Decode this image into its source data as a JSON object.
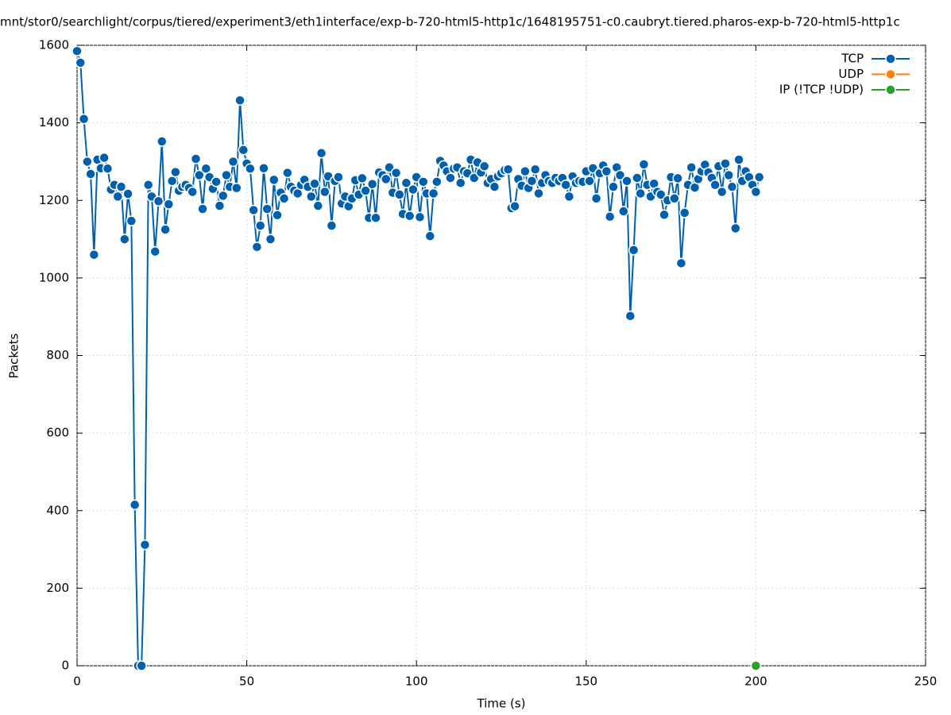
{
  "chart_data": {
    "type": "line",
    "title": "mnt/stor0/searchlight/corpus/tiered/experiment3/eth1interface/exp-b-720-html5-http1c/1648195751-c0.caubryt.tiered.pharos-exp-b-720-html5-http1c",
    "xlabel": "Time (s)",
    "ylabel": "Packets",
    "xlim": [
      0,
      250
    ],
    "xticks": [
      0,
      50,
      100,
      150,
      200,
      250
    ],
    "ylim": [
      0,
      1600
    ],
    "yticks": [
      0,
      200,
      400,
      600,
      800,
      1000,
      1200,
      1400,
      1600
    ],
    "grid": true,
    "legend": "top-right",
    "series": [
      {
        "name": "TCP",
        "color": "#0060ad",
        "x": [
          0,
          1,
          2,
          3,
          4,
          5,
          6,
          7,
          8,
          9,
          10,
          11,
          12,
          13,
          14,
          15,
          16,
          17,
          18,
          19,
          20,
          21,
          22,
          23,
          24,
          25,
          26,
          27,
          28,
          29,
          30,
          31,
          32,
          33,
          34,
          35,
          36,
          37,
          38,
          39,
          40,
          41,
          42,
          43,
          44,
          45,
          46,
          47,
          48,
          49,
          50,
          51,
          52,
          53,
          54,
          55,
          56,
          57,
          58,
          59,
          60,
          61,
          62,
          63,
          64,
          65,
          66,
          67,
          68,
          69,
          70,
          71,
          72,
          73,
          74,
          75,
          76,
          77,
          78,
          79,
          80,
          81,
          82,
          83,
          84,
          85,
          86,
          87,
          88,
          89,
          90,
          91,
          92,
          93,
          94,
          95,
          96,
          97,
          98,
          99,
          100,
          101,
          102,
          103,
          104,
          105,
          106,
          107,
          108,
          109,
          110,
          111,
          112,
          113,
          114,
          115,
          116,
          117,
          118,
          119,
          120,
          121,
          122,
          123,
          124,
          125,
          126,
          127,
          128,
          129,
          130,
          131,
          132,
          133,
          134,
          135,
          136,
          137,
          138,
          139,
          140,
          141,
          142,
          143,
          144,
          145,
          146,
          147,
          148,
          149,
          150,
          151,
          152,
          153,
          154,
          155,
          156,
          157,
          158,
          159,
          160,
          161,
          162,
          163,
          164,
          165,
          166,
          167,
          168,
          169,
          170,
          171,
          172,
          173,
          174,
          175,
          176,
          177,
          178,
          179,
          180,
          181,
          182,
          183,
          184,
          185,
          186,
          187,
          188,
          189,
          190,
          191,
          192,
          193,
          194,
          195,
          196,
          197,
          198,
          199,
          200,
          201
        ],
        "values": [
          1585,
          1555,
          1410,
          1300,
          1268,
          1060,
          1305,
          1283,
          1310,
          1282,
          1228,
          1240,
          1210,
          1235,
          1100,
          1217,
          1147,
          415,
          0,
          0,
          312,
          1240,
          1210,
          1068,
          1198,
          1352,
          1125,
          1190,
          1250,
          1273,
          1225,
          1235,
          1240,
          1232,
          1222,
          1307,
          1265,
          1178,
          1282,
          1260,
          1230,
          1248,
          1186,
          1212,
          1265,
          1235,
          1300,
          1232,
          1458,
          1330,
          1295,
          1282,
          1175,
          1080,
          1135,
          1283,
          1178,
          1100,
          1253,
          1162,
          1220,
          1205,
          1271,
          1235,
          1225,
          1218,
          1240,
          1253,
          1235,
          1210,
          1243,
          1186,
          1322,
          1222,
          1262,
          1135,
          1250,
          1260,
          1192,
          1210,
          1185,
          1205,
          1252,
          1215,
          1257,
          1225,
          1155,
          1242,
          1155,
          1272,
          1265,
          1255,
          1285,
          1220,
          1271,
          1215,
          1165,
          1245,
          1160,
          1228,
          1260,
          1157,
          1248,
          1218,
          1108,
          1218,
          1248,
          1302,
          1290,
          1275,
          1258,
          1282,
          1285,
          1245,
          1275,
          1270,
          1305,
          1258,
          1298,
          1272,
          1288,
          1245,
          1255,
          1235,
          1262,
          1270,
          1278,
          1280,
          1180,
          1185,
          1255,
          1238,
          1275,
          1232,
          1250,
          1280,
          1218,
          1245,
          1265,
          1250,
          1245,
          1258,
          1250,
          1258,
          1240,
          1210,
          1262,
          1245,
          1250,
          1248,
          1275,
          1250,
          1283,
          1205,
          1270,
          1290,
          1275,
          1158,
          1235,
          1285,
          1265,
          1172,
          1250,
          902,
          1072,
          1258,
          1218,
          1293,
          1240,
          1210,
          1243,
          1222,
          1215,
          1163,
          1200,
          1260,
          1205,
          1257,
          1038,
          1168,
          1240,
          1285,
          1233,
          1255,
          1275,
          1292,
          1272,
          1258,
          1240,
          1288,
          1222,
          1295,
          1265,
          1235,
          1128,
          1305,
          1250,
          1275,
          1260,
          1240,
          1222,
          1260
        ]
      },
      {
        "name": "UDP",
        "color": "#ff7f0e",
        "x": [
          200
        ],
        "values": [
          0
        ]
      },
      {
        "name": "IP (!TCP  !UDP)",
        "color": "#2ca02c",
        "x": [
          200
        ],
        "values": [
          0
        ]
      }
    ]
  }
}
